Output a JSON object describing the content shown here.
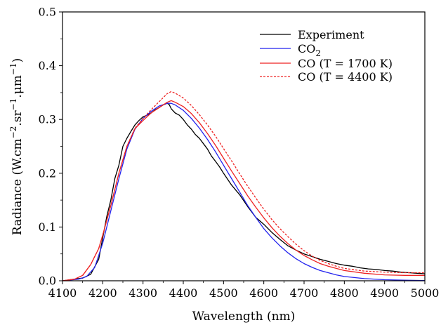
{
  "chart_data": {
    "type": "line",
    "xlabel": "Wavelength (nm)",
    "ylabel": {
      "pre": "Radiance (W.cm",
      "sup1": "−2",
      "mid": ".sr",
      "sup2": "−1",
      "mid2": ".μm",
      "sup3": "−1",
      "post": ")"
    },
    "xlim": [
      4100,
      5000
    ],
    "ylim": [
      0,
      0.5
    ],
    "xticks": [
      "4100",
      "4200",
      "4300",
      "4400",
      "4500",
      "4600",
      "4700",
      "4800",
      "4900",
      "5000"
    ],
    "yticks": [
      "0.0",
      "0.1",
      "0.2",
      "0.3",
      "0.4",
      "0.5"
    ],
    "grid": false,
    "legend_position": "top-right",
    "legend": {
      "experiment": "Experiment",
      "co2_main": "CO",
      "co2_sub": "2",
      "co_1700": "CO (T = 1700 K)",
      "co_4400": "CO (T = 4400 K)"
    },
    "series": [
      {
        "key": "experiment",
        "color": "#000000",
        "dash": "solid",
        "x": [
          4100,
          4130,
          4150,
          4170,
          4190,
          4200,
          4210,
          4220,
          4230,
          4240,
          4250,
          4260,
          4270,
          4280,
          4290,
          4300,
          4310,
          4320,
          4330,
          4340,
          4350,
          4360,
          4365,
          4370,
          4380,
          4390,
          4400,
          4410,
          4420,
          4430,
          4440,
          4450,
          4460,
          4470,
          4480,
          4490,
          4500,
          4520,
          4540,
          4560,
          4580,
          4600,
          4620,
          4640,
          4660,
          4680,
          4700,
          4720,
          4740,
          4760,
          4780,
          4800,
          4820,
          4840,
          4860,
          4880,
          4900,
          4920,
          4940,
          4960,
          4980,
          5000
        ],
        "y": [
          0.0,
          0.003,
          0.005,
          0.012,
          0.04,
          0.08,
          0.12,
          0.15,
          0.19,
          0.215,
          0.25,
          0.265,
          0.278,
          0.29,
          0.298,
          0.305,
          0.308,
          0.312,
          0.318,
          0.322,
          0.327,
          0.33,
          0.328,
          0.32,
          0.312,
          0.308,
          0.3,
          0.29,
          0.282,
          0.272,
          0.265,
          0.255,
          0.245,
          0.232,
          0.222,
          0.212,
          0.2,
          0.178,
          0.16,
          0.138,
          0.118,
          0.105,
          0.09,
          0.077,
          0.065,
          0.057,
          0.05,
          0.045,
          0.04,
          0.036,
          0.032,
          0.029,
          0.027,
          0.024,
          0.022,
          0.021,
          0.019,
          0.018,
          0.016,
          0.015,
          0.014,
          0.013
        ]
      },
      {
        "key": "co2",
        "color": "#2222ee",
        "dash": "solid",
        "x": [
          4100,
          4140,
          4160,
          4180,
          4200,
          4220,
          4240,
          4260,
          4280,
          4300,
          4320,
          4340,
          4360,
          4370,
          4380,
          4400,
          4420,
          4440,
          4460,
          4480,
          4500,
          4520,
          4540,
          4560,
          4580,
          4600,
          4620,
          4640,
          4660,
          4680,
          4700,
          4720,
          4740,
          4760,
          4780,
          4800,
          4850,
          4900,
          4950,
          5000
        ],
        "y": [
          0.0,
          0.003,
          0.008,
          0.025,
          0.07,
          0.13,
          0.19,
          0.245,
          0.282,
          0.302,
          0.315,
          0.325,
          0.33,
          0.33,
          0.327,
          0.317,
          0.302,
          0.284,
          0.263,
          0.24,
          0.215,
          0.19,
          0.165,
          0.14,
          0.118,
          0.097,
          0.08,
          0.065,
          0.052,
          0.041,
          0.032,
          0.025,
          0.019,
          0.015,
          0.011,
          0.008,
          0.004,
          0.002,
          0.001,
          0.0005
        ]
      },
      {
        "key": "co_1700",
        "color": "#ee2222",
        "dash": "solid",
        "x": [
          4100,
          4130,
          4150,
          4170,
          4190,
          4200,
          4220,
          4240,
          4260,
          4280,
          4300,
          4320,
          4340,
          4360,
          4370,
          4380,
          4400,
          4420,
          4440,
          4460,
          4480,
          4500,
          4520,
          4540,
          4560,
          4580,
          4600,
          4620,
          4640,
          4660,
          4680,
          4700,
          4720,
          4740,
          4760,
          4780,
          4800,
          4850,
          4900,
          4950,
          5000
        ],
        "y": [
          0.0,
          0.003,
          0.01,
          0.03,
          0.06,
          0.085,
          0.14,
          0.2,
          0.25,
          0.283,
          0.298,
          0.312,
          0.322,
          0.332,
          0.335,
          0.332,
          0.324,
          0.311,
          0.294,
          0.274,
          0.252,
          0.228,
          0.204,
          0.181,
          0.158,
          0.137,
          0.117,
          0.099,
          0.083,
          0.069,
          0.057,
          0.047,
          0.039,
          0.032,
          0.027,
          0.023,
          0.019,
          0.014,
          0.011,
          0.01,
          0.01
        ]
      },
      {
        "key": "co_4400",
        "color": "#ee2222",
        "dash": "dashed",
        "x": [
          4100,
          4130,
          4150,
          4170,
          4190,
          4200,
          4220,
          4240,
          4260,
          4280,
          4300,
          4320,
          4340,
          4360,
          4370,
          4380,
          4400,
          4420,
          4440,
          4460,
          4480,
          4500,
          4520,
          4540,
          4560,
          4580,
          4600,
          4620,
          4640,
          4660,
          4680,
          4700,
          4720,
          4740,
          4760,
          4780,
          4800,
          4850,
          4900,
          4950,
          5000
        ],
        "y": [
          0.0,
          0.003,
          0.01,
          0.03,
          0.06,
          0.085,
          0.14,
          0.2,
          0.25,
          0.284,
          0.302,
          0.318,
          0.333,
          0.348,
          0.352,
          0.349,
          0.34,
          0.326,
          0.309,
          0.29,
          0.269,
          0.246,
          0.223,
          0.199,
          0.176,
          0.154,
          0.133,
          0.114,
          0.097,
          0.082,
          0.068,
          0.056,
          0.046,
          0.038,
          0.032,
          0.027,
          0.023,
          0.018,
          0.016,
          0.015,
          0.015
        ]
      }
    ]
  }
}
